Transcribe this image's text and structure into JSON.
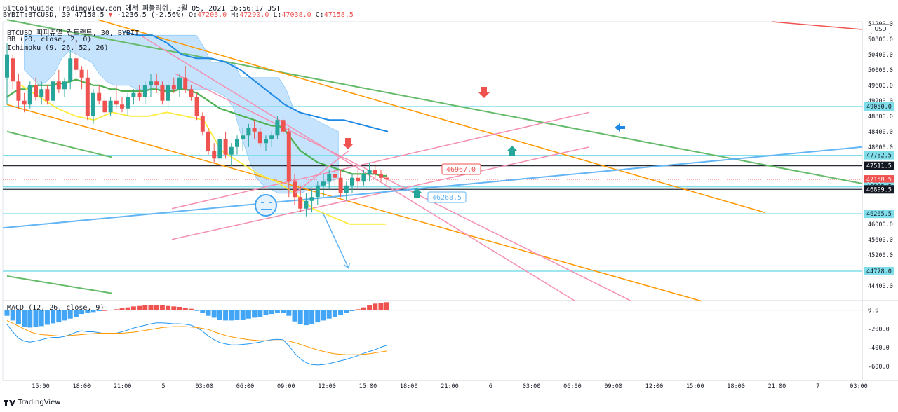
{
  "header": {
    "line1": "BitCoinGuide TradingView.com 에서 퍼블리쉬, 3월 05, 2021 16:56:17 JST",
    "symbol_prefix": "BYBIT:BTCUSD, 30",
    "last": "47158.5",
    "change": "-1236.5 (-2.56%)",
    "o_label": "O:",
    "o_value": "47203.0",
    "h_label": "H:",
    "h_value": "47290.0",
    "l_label": "L:",
    "l_value": "47038.0",
    "c_label": "C:",
    "c_value": "47158.5"
  },
  "legend": {
    "title": "BTCUSD 퍼피츄얼 컨트랙트, 30, BYBIT",
    "bb": "BB (20, close, 2, 0)",
    "ichimoku": "Ichimoku (9, 26, 52, 26)",
    "macd": "MACD (12, 26, close, 9)"
  },
  "currency_badge": "USD",
  "footer": {
    "brand": "TradingView"
  },
  "colors": {
    "up": "#26a69a",
    "down": "#ef5350",
    "bb_basis": "#4caf50",
    "ichi_cloud": "#bbdefb",
    "ichi_line": "#1e88e5",
    "yellow": "#ffeb3b",
    "orange": "#ff9800",
    "green": "#66bb6a",
    "pink": "#f48fb1",
    "blue": "#64b5f6",
    "hline": "#80deea"
  },
  "annotations": {
    "price_tag_red": "46967.0",
    "price_tag_blue": "46268.5"
  },
  "chart_data": [
    {
      "type": "candlestick",
      "title": "BTCUSD 퍼피츄얼 컨트랙트, 30, BYBIT",
      "ylim": [
        44050,
        51250
      ],
      "y_ticks": [
        44400,
        44800,
        45200,
        45600,
        46000,
        46400,
        46800,
        47200,
        47600,
        48000,
        48400,
        48800,
        49200,
        49600,
        50000,
        50400,
        50800,
        51200
      ],
      "y_tick_labels": [
        "44400.0",
        "44800.0",
        "45200.0",
        "45600.0",
        "46000.0",
        "",
        "",
        "",
        "",
        "48000.0",
        "48400.0",
        "48800.0",
        "49200.0",
        "49600.0",
        "50000.0",
        "50400.0",
        "50800.0",
        "51200.0"
      ],
      "x_tick_labels": [
        "15:00",
        "18:00",
        "21:00",
        "5",
        "03:00",
        "06:00",
        "09:00",
        "12:00",
        "15:00",
        "18:00",
        "21:00",
        "6",
        "03:00",
        "06:00",
        "09:00",
        "12:00",
        "15:00",
        "18:00",
        "21:00",
        "7",
        "03:00"
      ],
      "candles": [
        [
          49800,
          50700,
          49100,
          50400
        ],
        [
          50300,
          50400,
          49500,
          49700
        ],
        [
          49700,
          49900,
          49000,
          49200
        ],
        [
          49200,
          49400,
          48900,
          49100
        ],
        [
          49100,
          49700,
          49000,
          49600
        ],
        [
          49600,
          49800,
          49200,
          49300
        ],
        [
          49300,
          49700,
          49100,
          49500
        ],
        [
          49500,
          49600,
          49100,
          49200
        ],
        [
          49200,
          49800,
          49100,
          49700
        ],
        [
          49700,
          50000,
          49400,
          49500
        ],
        [
          49500,
          49800,
          49300,
          49700
        ],
        [
          49700,
          50500,
          49500,
          50300
        ],
        [
          50300,
          50800,
          49900,
          50000
        ],
        [
          50000,
          50100,
          49500,
          49800
        ],
        [
          49800,
          50000,
          48700,
          48800
        ],
        [
          48800,
          49500,
          48600,
          49400
        ],
        [
          49400,
          49600,
          49100,
          49200
        ],
        [
          49200,
          49300,
          48800,
          48900
        ],
        [
          48900,
          49300,
          48800,
          49200
        ],
        [
          49200,
          49600,
          49000,
          49100
        ],
        [
          49100,
          49300,
          48900,
          49000
        ],
        [
          49000,
          49400,
          48800,
          49300
        ],
        [
          49300,
          49500,
          49100,
          49400
        ],
        [
          49400,
          49600,
          49200,
          49300
        ],
        [
          49300,
          49700,
          49100,
          49600
        ],
        [
          49600,
          49900,
          49300,
          49700
        ],
        [
          49700,
          49900,
          49400,
          49600
        ],
        [
          49600,
          49700,
          49100,
          49200
        ],
        [
          49200,
          49700,
          49000,
          49600
        ],
        [
          49600,
          49800,
          49400,
          49500
        ],
        [
          49500,
          49900,
          49300,
          49800
        ],
        [
          49800,
          50100,
          49400,
          49500
        ],
        [
          49500,
          49600,
          49200,
          49300
        ],
        [
          49300,
          49400,
          48700,
          48800
        ],
        [
          48800,
          48900,
          48300,
          48400
        ],
        [
          48400,
          48500,
          47800,
          47900
        ],
        [
          47900,
          48100,
          47600,
          47700
        ],
        [
          47700,
          48300,
          47600,
          48200
        ],
        [
          48200,
          48400,
          47700,
          47800
        ],
        [
          47800,
          48100,
          47500,
          48000
        ],
        [
          48000,
          48300,
          47800,
          48200
        ],
        [
          48200,
          48500,
          47900,
          48300
        ],
        [
          48300,
          48600,
          48000,
          48500
        ],
        [
          48500,
          48700,
          48200,
          48400
        ],
        [
          48400,
          48500,
          48000,
          48100
        ],
        [
          48100,
          48300,
          47900,
          48200
        ],
        [
          48200,
          48400,
          48000,
          48300
        ],
        [
          48300,
          48800,
          48200,
          48700
        ],
        [
          48700,
          48800,
          48300,
          48400
        ],
        [
          48400,
          48500,
          46700,
          47100
        ],
        [
          47100,
          47300,
          46500,
          46700
        ],
        [
          46700,
          47000,
          46300,
          46400
        ],
        [
          46400,
          46800,
          46200,
          46600
        ],
        [
          46600,
          46900,
          46300,
          46700
        ],
        [
          46700,
          47100,
          46500,
          47000
        ],
        [
          47000,
          47300,
          46700,
          47100
        ],
        [
          47100,
          47400,
          46900,
          47300
        ],
        [
          47300,
          47500,
          47000,
          47200
        ],
        [
          47200,
          47400,
          46700,
          46800
        ],
        [
          46800,
          47100,
          46600,
          47000
        ],
        [
          47000,
          47300,
          46800,
          47200
        ],
        [
          47200,
          47400,
          46900,
          47100
        ],
        [
          47100,
          47400,
          47000,
          47300
        ],
        [
          47300,
          47600,
          47100,
          47400
        ],
        [
          47400,
          47500,
          47200,
          47300
        ],
        [
          47300,
          47400,
          47100,
          47200
        ],
        [
          47203,
          47290,
          47038,
          47158.5
        ]
      ],
      "series": [
        {
          "name": "",
          "values": [
            49300,
            49400,
            49500,
            49500,
            49550,
            49600,
            49600,
            49600,
            49600,
            49650,
            49650,
            49700,
            49750,
            49700,
            49650,
            49600,
            49600,
            49550,
            49500,
            49500,
            49450,
            49450,
            49450,
            49450,
            49450,
            49500,
            49500,
            49450,
            49450,
            49450,
            49500,
            49500,
            49450,
            49400,
            49300,
            49200,
            49100,
            49000,
            48950,
            48900,
            48850,
            48800,
            48750,
            48700,
            48650,
            48600,
            48550,
            48550,
            48500,
            48300,
            48100,
            47900,
            47800,
            47700,
            47600,
            47550,
            47500,
            47450,
            47400,
            47350,
            47300,
            47300,
            47300,
            47300,
            47300,
            47250,
            47250
          ]
        },
        {
          "name": "",
          "values": [
            null,
            null,
            null,
            null,
            null,
            null,
            null,
            null,
            null,
            null,
            null,
            null,
            null,
            null,
            null,
            null,
            null,
            null,
            null,
            null,
            null,
            null,
            null,
            null,
            null,
            null,
            null,
            null,
            null,
            null,
            null,
            null,
            null,
            null,
            null,
            null,
            null,
            null,
            null,
            null,
            null,
            null,
            null,
            null,
            null,
            null,
            null,
            null,
            null,
            null,
            null,
            null,
            null,
            null,
            null,
            null,
            null,
            null,
            null,
            null,
            null,
            null,
            null,
            null,
            null,
            null,
            null
          ]
        }
      ],
      "horizontal_levels": [
        "49050.0",
        "47782.5",
        "47511.5",
        "46965.5",
        "46899.5",
        "46265.5",
        "44778.0"
      ],
      "price_labels": [
        {
          "text": "49050.0",
          "value": 49050,
          "color": "#80deea"
        },
        {
          "text": "47782.5",
          "value": 47782.5,
          "color": "#80deea"
        },
        {
          "text": "47511.5",
          "value": 47511.5,
          "color": "#131722"
        },
        {
          "text": "47158.5",
          "value": 47158.5,
          "color": "#ef5350"
        },
        {
          "text": "03:44",
          "value": 47020,
          "color": "#ef5350"
        },
        {
          "text": "46965.5",
          "value": 46965.5,
          "color": "#80deea"
        },
        {
          "text": "46899.5",
          "value": 46899.5,
          "color": "#131722"
        },
        {
          "text": "46265.5",
          "value": 46265.5,
          "color": "#80deea"
        },
        {
          "text": "44778.0",
          "value": 44778,
          "color": "#80deea"
        }
      ]
    },
    {
      "type": "bar",
      "title": "MACD (12, 26, close, 9)",
      "ylim": [
        -750,
        80
      ],
      "y_ticks": [
        0,
        -200,
        -400,
        -600
      ],
      "y_tick_labels": [
        "0.0",
        "-200.0",
        "-400.0",
        "-600.0"
      ],
      "histogram": [
        -60,
        -110,
        -150,
        -175,
        -185,
        -180,
        -170,
        -155,
        -140,
        -130,
        -110,
        -90,
        -70,
        -40,
        -30,
        -20,
        -10,
        0,
        5,
        10,
        20,
        30,
        40,
        45,
        50,
        55,
        55,
        50,
        45,
        40,
        35,
        25,
        15,
        -5,
        -30,
        -60,
        -80,
        -100,
        -110,
        -110,
        -105,
        -100,
        -90,
        -80,
        -70,
        -55,
        -40,
        -30,
        -30,
        -60,
        -120,
        -150,
        -160,
        -150,
        -130,
        -110,
        -90,
        -70,
        -50,
        -30,
        -10,
        10,
        30,
        50,
        70,
        80,
        85
      ],
      "macd": [
        -150,
        -230,
        -300,
        -330,
        -340,
        -330,
        -315,
        -300,
        -290,
        -290,
        -280,
        -260,
        -235,
        -220,
        -230,
        -230,
        -240,
        -250,
        -250,
        -245,
        -230,
        -210,
        -190,
        -175,
        -160,
        -145,
        -135,
        -135,
        -140,
        -145,
        -145,
        -150,
        -160,
        -185,
        -225,
        -275,
        -315,
        -345,
        -360,
        -370,
        -370,
        -365,
        -360,
        -350,
        -340,
        -325,
        -315,
        -310,
        -315,
        -380,
        -460,
        -520,
        -560,
        -580,
        -585,
        -580,
        -570,
        -555,
        -540,
        -525,
        -505,
        -485,
        -460,
        -440,
        -420,
        -395,
        -375
      ],
      "signal": [
        -110,
        -140,
        -170,
        -200,
        -230,
        -250,
        -260,
        -265,
        -270,
        -275,
        -275,
        -270,
        -265,
        -260,
        -255,
        -250,
        -245,
        -245,
        -245,
        -245,
        -245,
        -240,
        -235,
        -225,
        -215,
        -205,
        -195,
        -185,
        -180,
        -175,
        -175,
        -175,
        -180,
        -185,
        -195,
        -205,
        -230,
        -250,
        -270,
        -285,
        -295,
        -305,
        -315,
        -320,
        -325,
        -325,
        -325,
        -325,
        -325,
        -330,
        -345,
        -365,
        -385,
        -405,
        -425,
        -440,
        -455,
        -465,
        -470,
        -475,
        -475,
        -475,
        -470,
        -465,
        -455,
        -445,
        -435
      ]
    }
  ]
}
